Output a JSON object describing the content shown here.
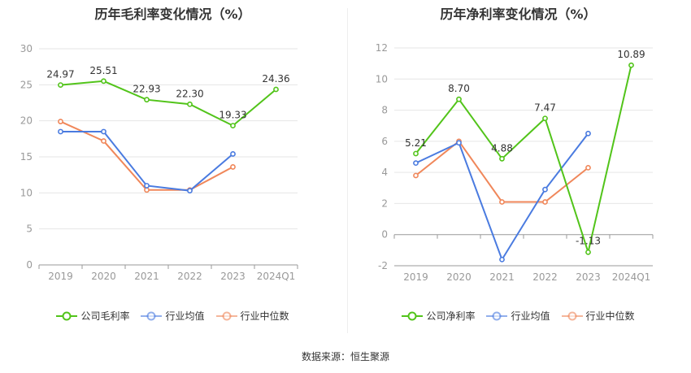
{
  "chart_data": [
    {
      "type": "line",
      "title": "历年毛利率变化情况（%）",
      "categories": [
        "2019",
        "2020",
        "2021",
        "2022",
        "2023",
        "2024Q1"
      ],
      "ylim": [
        0,
        30
      ],
      "yticks": [
        "0",
        "5",
        "10",
        "15",
        "20",
        "25",
        "30"
      ],
      "grid": true,
      "legend_position": "bottom",
      "series": [
        {
          "name": "公司毛利率",
          "color": "#52c41a",
          "values": [
            24.97,
            25.51,
            22.93,
            22.3,
            19.33,
            24.36
          ],
          "labels": [
            "24.97",
            "25.51",
            "22.93",
            "22.30",
            "19.33",
            "24.36"
          ]
        },
        {
          "name": "行业均值",
          "color": "#4a7be0",
          "values": [
            18.5,
            18.5,
            11.0,
            10.3,
            15.4,
            null
          ],
          "labels": []
        },
        {
          "name": "行业中位数",
          "color": "#f0875a",
          "values": [
            19.9,
            17.2,
            10.4,
            10.4,
            13.6,
            null
          ],
          "labels": []
        }
      ]
    },
    {
      "type": "line",
      "title": "历年净利率变化情况（%）",
      "categories": [
        "2019",
        "2020",
        "2021",
        "2022",
        "2023",
        "2024Q1"
      ],
      "ylim": [
        -2,
        12
      ],
      "yticks": [
        "-2",
        "0",
        "2",
        "4",
        "6",
        "8",
        "10",
        "12"
      ],
      "grid": true,
      "legend_position": "bottom",
      "series": [
        {
          "name": "公司净利率",
          "color": "#52c41a",
          "values": [
            5.21,
            8.7,
            4.88,
            7.47,
            -1.13,
            10.89
          ],
          "labels": [
            "5.21",
            "8.70",
            "4.88",
            "7.47",
            "-1.13",
            "10.89"
          ]
        },
        {
          "name": "行业均值",
          "color": "#4a7be0",
          "values": [
            4.6,
            5.9,
            -1.6,
            2.9,
            6.5,
            null
          ],
          "labels": []
        },
        {
          "name": "行业中位数",
          "color": "#f0875a",
          "values": [
            3.8,
            6.0,
            2.1,
            2.1,
            4.3,
            null
          ],
          "labels": []
        }
      ]
    }
  ],
  "footer": {
    "source": "数据来源：恒生聚源"
  }
}
